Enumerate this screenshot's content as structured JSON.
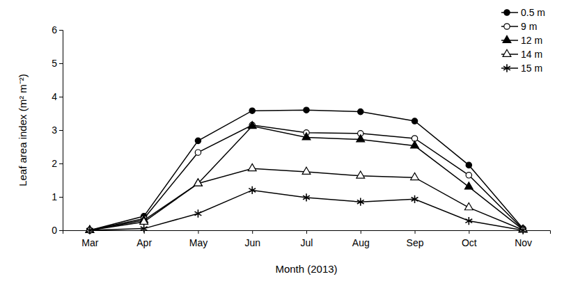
{
  "chart_data": {
    "type": "line",
    "x_label": "Month (2013)",
    "y_label": "Leaf area index  (m² m⁻²)",
    "categories": [
      "Mar",
      "Apr",
      "May",
      "Jun",
      "Jul",
      "Aug",
      "Sep",
      "Oct",
      "Nov"
    ],
    "series": [
      {
        "name": "0.5 m",
        "color": "#000000",
        "marker": "circle",
        "line_style": "solid",
        "values": [
          0,
          0.42,
          2.68,
          3.58,
          3.6,
          3.55,
          3.27,
          1.95,
          0.05
        ]
      },
      {
        "name": "9 m",
        "color": "#000000",
        "marker": "circle-open",
        "line_style": "solid",
        "values": [
          0,
          0.35,
          2.33,
          3.15,
          2.92,
          2.9,
          2.75,
          1.65,
          0.03
        ]
      },
      {
        "name": "12 m",
        "color": "#000000",
        "marker": "triangle",
        "line_style": "solid",
        "values": [
          0,
          0.3,
          1.4,
          3.12,
          2.78,
          2.72,
          2.53,
          1.3,
          0.02
        ]
      },
      {
        "name": "14 m",
        "color": "#000000",
        "marker": "triangle-open",
        "line_style": "solid",
        "values": [
          0,
          0.25,
          1.4,
          1.85,
          1.75,
          1.63,
          1.58,
          0.68,
          0.01
        ]
      },
      {
        "name": "15 m",
        "color": "#000000",
        "marker": "asterisk",
        "line_style": "solid",
        "values": [
          0,
          0.05,
          0.5,
          1.2,
          0.98,
          0.85,
          0.93,
          0.28,
          0
        ]
      }
    ],
    "ylim": [
      0,
      6
    ],
    "yticks": [
      0,
      1,
      2,
      3,
      4,
      5,
      6
    ],
    "grid": false,
    "legend": "upper right"
  }
}
